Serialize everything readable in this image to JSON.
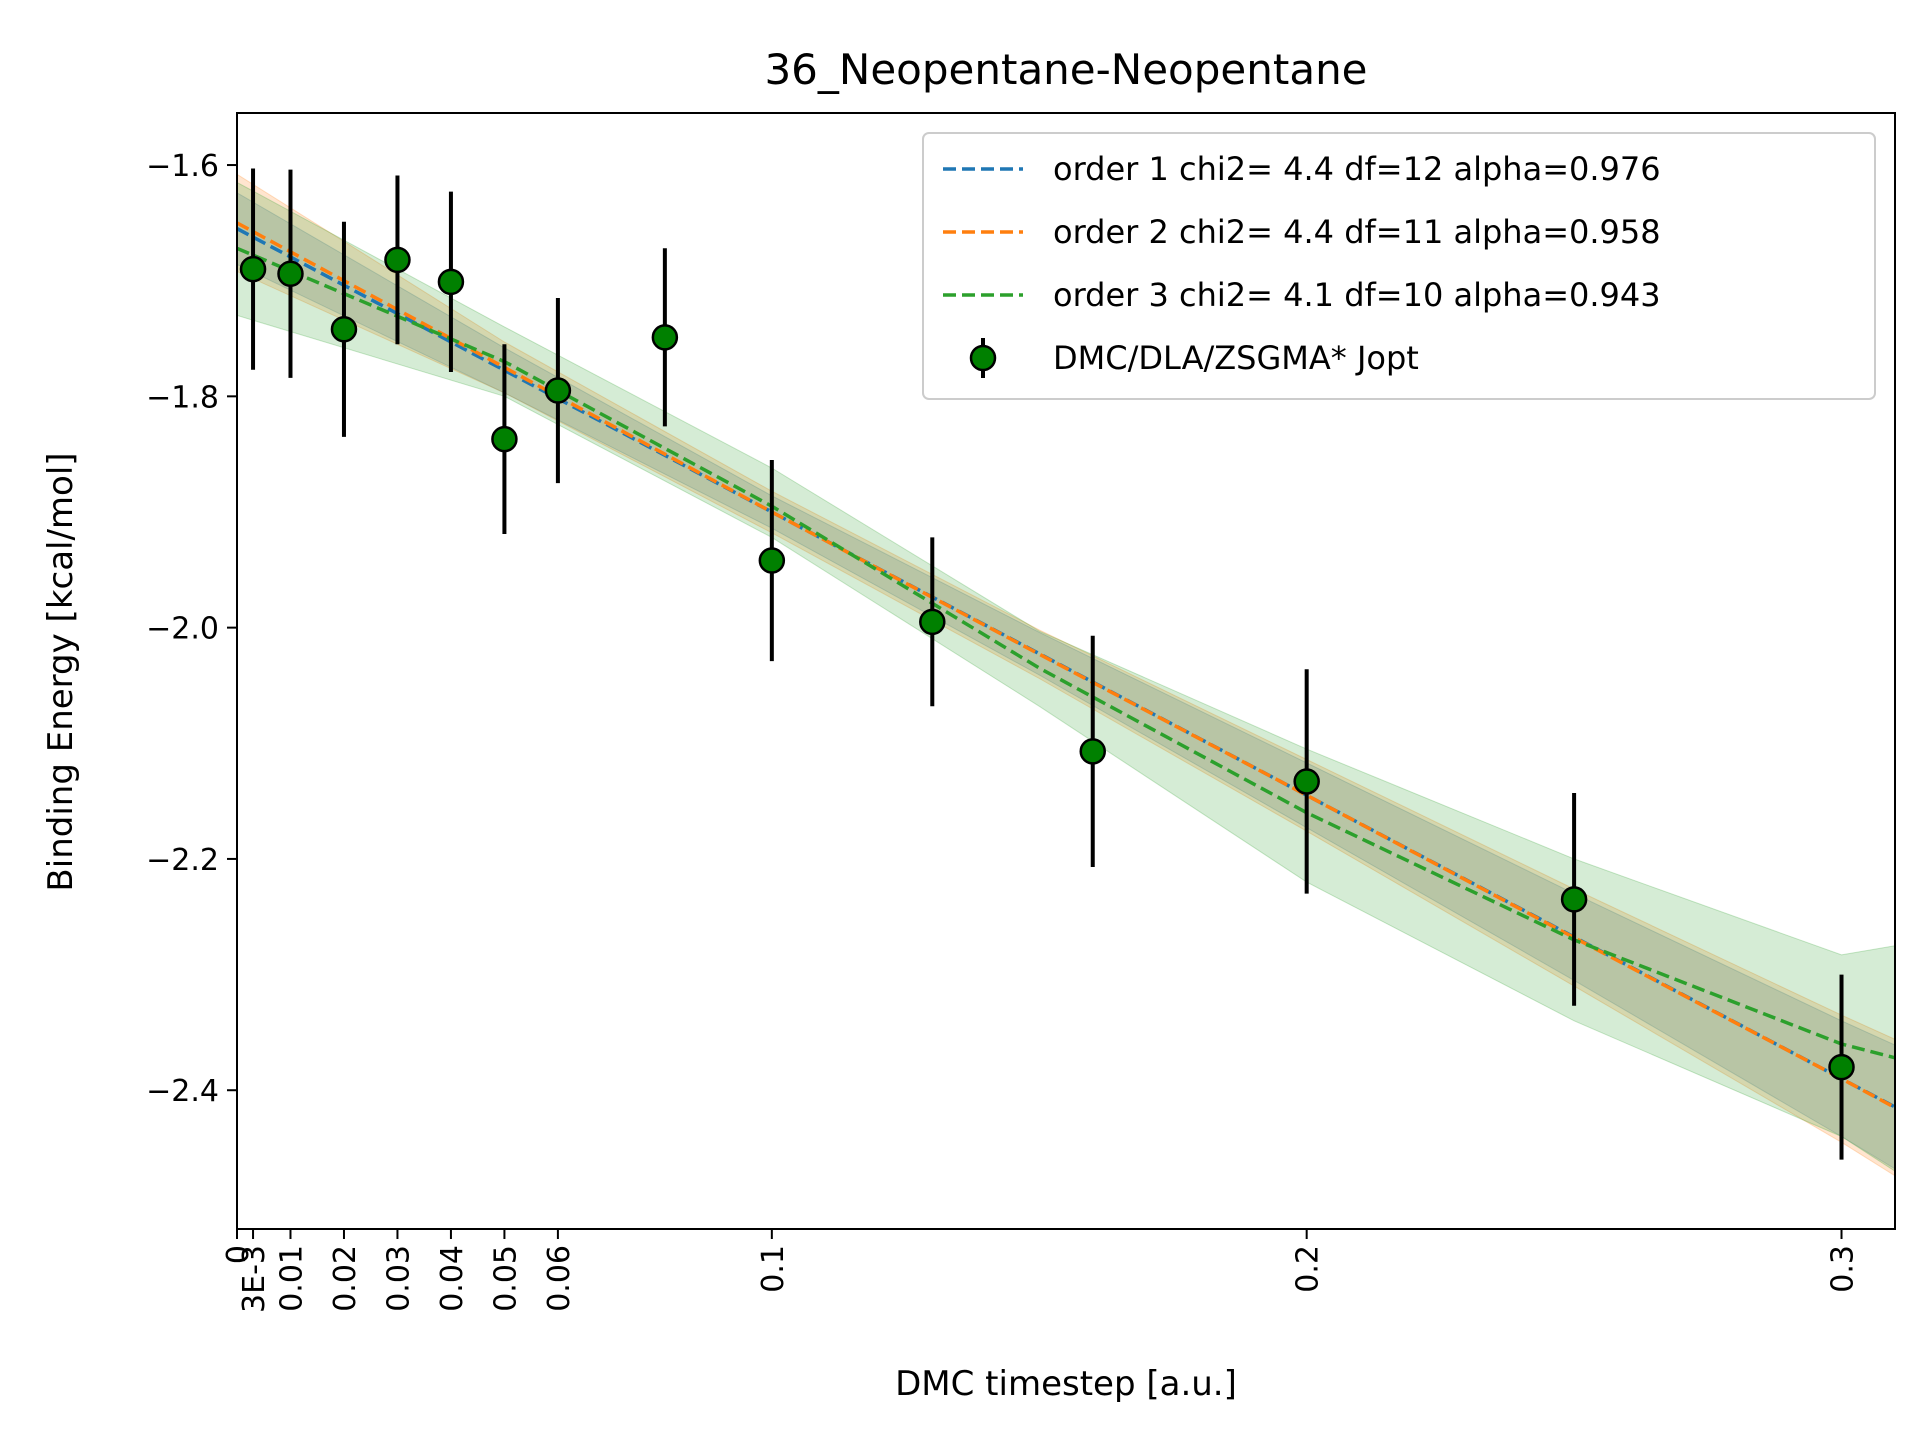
{
  "chart_data": {
    "type": "scatter",
    "title": "36_Neopentane-Neopentane",
    "xlabel": "DMC timestep [a.u.]",
    "ylabel": "Binding Energy [kcal/mol]",
    "xlim": [
      0,
      0.31
    ],
    "ylim": [
      -2.52,
      -1.555
    ],
    "x_ticks": [
      {
        "value": 0,
        "label": "0"
      },
      {
        "value": 0.003,
        "label": "3E-3"
      },
      {
        "value": 0.01,
        "label": "0.01"
      },
      {
        "value": 0.02,
        "label": "0.02"
      },
      {
        "value": 0.03,
        "label": "0.03"
      },
      {
        "value": 0.04,
        "label": "0.04"
      },
      {
        "value": 0.05,
        "label": "0.05"
      },
      {
        "value": 0.06,
        "label": "0.06"
      },
      {
        "value": 0.1,
        "label": "0.1"
      },
      {
        "value": 0.2,
        "label": "0.2"
      },
      {
        "value": 0.3,
        "label": "0.3"
      }
    ],
    "y_ticks": [
      {
        "value": -1.6,
        "label": "−1.6"
      },
      {
        "value": -1.8,
        "label": "−1.8"
      },
      {
        "value": -2.0,
        "label": "−2.0"
      },
      {
        "value": -2.2,
        "label": "−2.2"
      },
      {
        "value": -2.4,
        "label": "−2.4"
      }
    ],
    "grid": false,
    "legend_position": "top-right",
    "fits": [
      {
        "name": "order 1 chi2= 4.4 df=12 alpha=0.976",
        "color": "#1f77b4",
        "x": [
          0,
          0.05,
          0.1,
          0.15,
          0.2,
          0.25,
          0.3,
          0.31
        ],
        "y": [
          -1.655,
          -1.7775,
          -1.9,
          -2.0225,
          -2.145,
          -2.2675,
          -2.39,
          -2.4145
        ],
        "band_lower": [
          -1.686,
          -1.797,
          -1.914,
          -2.041,
          -2.173,
          -2.305,
          -2.44,
          -2.468
        ],
        "band_upper": [
          -1.624,
          -1.758,
          -1.886,
          -2.004,
          -2.117,
          -2.23,
          -2.34,
          -2.361
        ]
      },
      {
        "name": "order 2 chi2= 4.4 df=11 alpha=0.958",
        "color": "#ff7f0e",
        "x": [
          0,
          0.05,
          0.1,
          0.15,
          0.2,
          0.25,
          0.3,
          0.31
        ],
        "y": [
          -1.65,
          -1.775,
          -1.9,
          -2.023,
          -2.145,
          -2.268,
          -2.39,
          -2.415
        ],
        "band_lower": [
          -1.692,
          -1.797,
          -1.918,
          -2.044,
          -2.176,
          -2.31,
          -2.445,
          -2.474
        ],
        "band_upper": [
          -1.608,
          -1.753,
          -1.882,
          -2.002,
          -2.114,
          -2.226,
          -2.335,
          -2.356
        ]
      },
      {
        "name": "order 3 chi2= 4.1 df=10 alpha=0.943",
        "color": "#2ca02c",
        "x": [
          0,
          0.05,
          0.1,
          0.15,
          0.2,
          0.25,
          0.3,
          0.31
        ],
        "y": [
          -1.672,
          -1.77,
          -1.895,
          -2.035,
          -2.16,
          -2.27,
          -2.36,
          -2.372
        ],
        "band_lower": [
          -1.73,
          -1.8,
          -1.922,
          -2.068,
          -2.22,
          -2.34,
          -2.44,
          -2.47
        ],
        "band_upper": [
          -1.615,
          -1.74,
          -1.862,
          -2.003,
          -2.105,
          -2.2,
          -2.283,
          -2.275
        ]
      }
    ],
    "series": [
      {
        "name": "DMC/DLA/ZSGMA* Jopt",
        "color": "#008000",
        "x": [
          0.003,
          0.01,
          0.02,
          0.03,
          0.04,
          0.05,
          0.06,
          0.08,
          0.1,
          0.13,
          0.16,
          0.2,
          0.25,
          0.3
        ],
        "y": [
          -1.69,
          -1.694,
          -1.742,
          -1.682,
          -1.701,
          -1.837,
          -1.795,
          -1.749,
          -1.942,
          -1.995,
          -2.107,
          -2.133,
          -2.235,
          -2.38
        ],
        "yerr": [
          0.087,
          0.09,
          0.093,
          0.073,
          0.078,
          0.082,
          0.08,
          0.077,
          0.087,
          0.073,
          0.1,
          0.097,
          0.092,
          0.08
        ]
      }
    ]
  }
}
